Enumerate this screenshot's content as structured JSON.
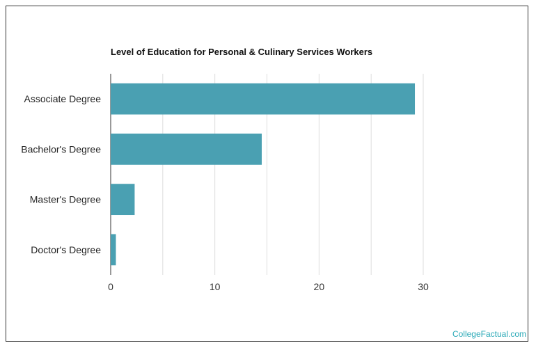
{
  "chart_data": {
    "type": "bar",
    "orientation": "horizontal",
    "title": "Level of Education for Personal & Culinary Services Workers",
    "xlabel": "",
    "ylabel": "",
    "categories": [
      "Associate Degree",
      "Bachelor's Degree",
      "Master's Degree",
      "Doctor's Degree"
    ],
    "values": [
      29.2,
      14.5,
      2.3,
      0.5
    ],
    "xlim": [
      0,
      30
    ],
    "xticks": [
      "0",
      "10",
      "20",
      "30"
    ],
    "grid": true,
    "bar_color": "#4aa0b2",
    "grid_color": "#dddddd"
  },
  "footer": {
    "watermark": "CollegeFactual.com",
    "watermark_color": "#2aa9b7"
  }
}
